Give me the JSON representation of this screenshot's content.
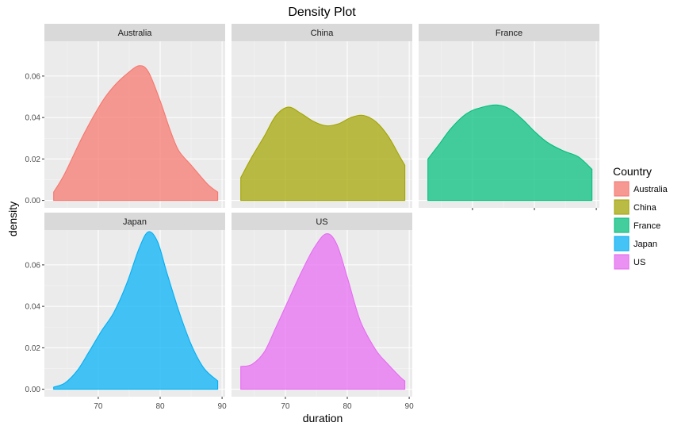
{
  "chart_data": {
    "type": "area",
    "title": "Density Plot",
    "xlabel": "duration",
    "ylabel": "density",
    "xlim": [
      61.3,
      90.5
    ],
    "ylim": [
      -0.0036,
      0.0768
    ],
    "x_ticks": [
      70,
      80,
      90
    ],
    "x_tick_labels": [
      "70",
      "80",
      "90"
    ],
    "y_ticks": [
      0,
      0.02,
      0.04,
      0.06
    ],
    "y_tick_labels": [
      "0.00",
      "0.02",
      "0.04",
      "0.06"
    ],
    "grid": true,
    "facets": [
      "Australia",
      "China",
      "France",
      "Japan",
      "US"
    ],
    "facet_layout": "3 columns x 2 rows",
    "legend": {
      "title": "Country",
      "position": "right",
      "entries": [
        "Australia",
        "China",
        "France",
        "Japan",
        "US"
      ]
    },
    "series": [
      {
        "name": "Australia",
        "color": "#F8766D",
        "points": [
          [
            62.8,
            0.004
          ],
          [
            64.6,
            0.013
          ],
          [
            67.5,
            0.031
          ],
          [
            70.5,
            0.047
          ],
          [
            72.5,
            0.055
          ],
          [
            74.6,
            0.061
          ],
          [
            76.6,
            0.065
          ],
          [
            78.1,
            0.062
          ],
          [
            80.0,
            0.048
          ],
          [
            81.6,
            0.034
          ],
          [
            83.0,
            0.024
          ],
          [
            85.0,
            0.017
          ],
          [
            87.6,
            0.008
          ],
          [
            89.3,
            0.004
          ]
        ]
      },
      {
        "name": "China",
        "color": "#A3A500",
        "points": [
          [
            62.8,
            0.011
          ],
          [
            64.6,
            0.021
          ],
          [
            66.6,
            0.031
          ],
          [
            68.5,
            0.041
          ],
          [
            70.5,
            0.045
          ],
          [
            72.5,
            0.042
          ],
          [
            74.6,
            0.038
          ],
          [
            76.6,
            0.036
          ],
          [
            78.6,
            0.037
          ],
          [
            80.6,
            0.04
          ],
          [
            82.6,
            0.041
          ],
          [
            84.6,
            0.038
          ],
          [
            86.6,
            0.031
          ],
          [
            88.5,
            0.021
          ],
          [
            89.3,
            0.017
          ]
        ]
      },
      {
        "name": "France",
        "color": "#00BF7D",
        "points": [
          [
            62.8,
            0.02
          ],
          [
            64.6,
            0.027
          ],
          [
            66.6,
            0.035
          ],
          [
            69.1,
            0.042
          ],
          [
            71.6,
            0.045
          ],
          [
            74.1,
            0.046
          ],
          [
            76.1,
            0.044
          ],
          [
            78.1,
            0.039
          ],
          [
            80.1,
            0.033
          ],
          [
            82.1,
            0.028
          ],
          [
            84.6,
            0.024
          ],
          [
            87.1,
            0.021
          ],
          [
            89.3,
            0.015
          ]
        ]
      },
      {
        "name": "Japan",
        "color": "#00B0F6",
        "points": [
          [
            62.8,
            0.001
          ],
          [
            64.6,
            0.003
          ],
          [
            66.6,
            0.009
          ],
          [
            68.5,
            0.018
          ],
          [
            70.5,
            0.028
          ],
          [
            72.5,
            0.037
          ],
          [
            74.6,
            0.051
          ],
          [
            76.6,
            0.068
          ],
          [
            78.1,
            0.076
          ],
          [
            79.6,
            0.071
          ],
          [
            81.1,
            0.056
          ],
          [
            83.1,
            0.037
          ],
          [
            85.1,
            0.021
          ],
          [
            87.1,
            0.01
          ],
          [
            89.3,
            0.004
          ]
        ]
      },
      {
        "name": "US",
        "color": "#E76BF3",
        "points": [
          [
            62.8,
            0.011
          ],
          [
            64.6,
            0.012
          ],
          [
            66.6,
            0.018
          ],
          [
            68.5,
            0.03
          ],
          [
            70.5,
            0.043
          ],
          [
            72.5,
            0.056
          ],
          [
            74.6,
            0.068
          ],
          [
            76.6,
            0.075
          ],
          [
            78.3,
            0.07
          ],
          [
            80.1,
            0.053
          ],
          [
            82.1,
            0.033
          ],
          [
            84.6,
            0.019
          ],
          [
            86.6,
            0.012
          ],
          [
            88.5,
            0.006
          ],
          [
            89.3,
            0.004
          ]
        ]
      }
    ]
  }
}
